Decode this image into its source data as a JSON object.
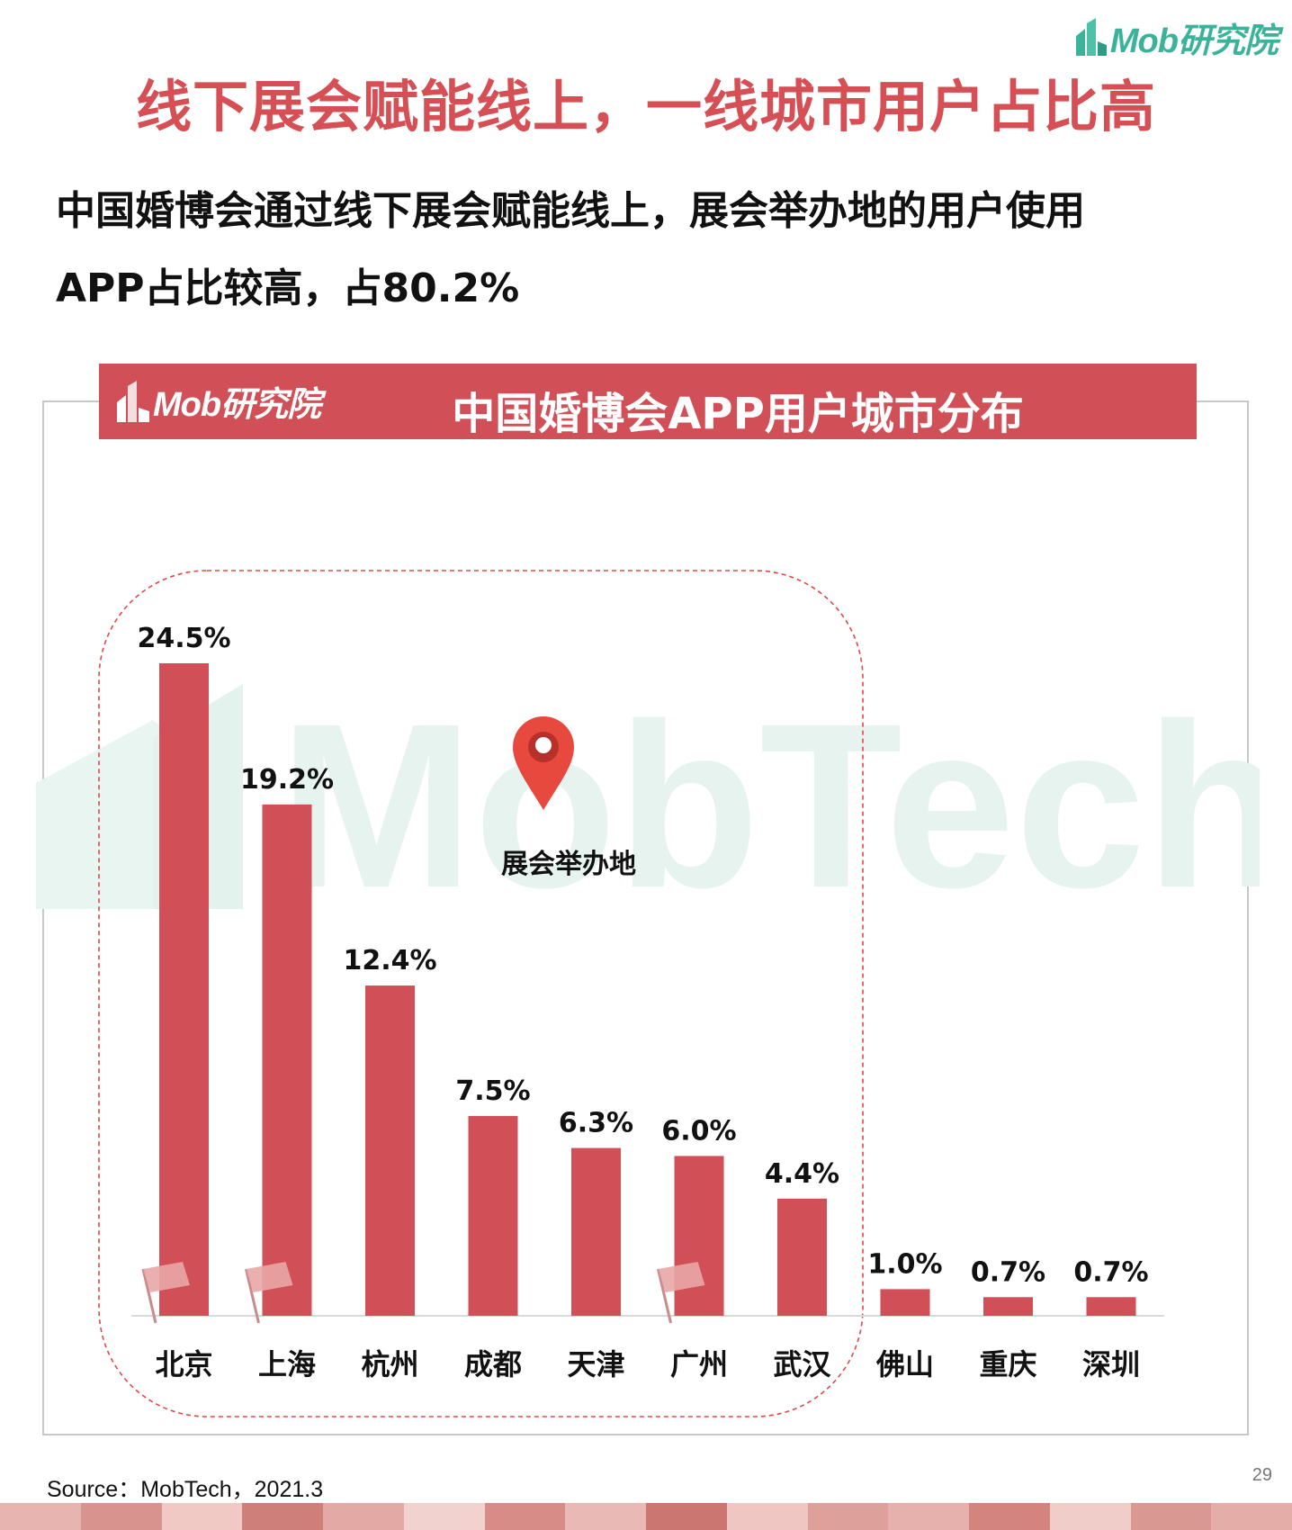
{
  "brand": {
    "name": "Mob研究院",
    "color": "#3bb39a"
  },
  "headline": "线下展会赋能线上，一线城市用户占比高",
  "summary": {
    "line1": "中国婚博会通过线下展会赋能线上，展会举办地的用户使用",
    "line2": "APP占比较高，占80.2%"
  },
  "chart_panel": {
    "logo": "Mob研究院",
    "title": "中国婚博会APP用户城市分布",
    "header_color": "#d14f56"
  },
  "watermark": "MobTech 袤博",
  "annotation": {
    "label": "展会举办地",
    "pin_icon": "location-pin-icon",
    "flag_icon": "flag-icon"
  },
  "chart_data": {
    "type": "bar",
    "title": "中国婚博会APP用户城市分布",
    "categories": [
      "北京",
      "上海",
      "杭州",
      "成都",
      "天津",
      "广州",
      "武汉",
      "佛山",
      "重庆",
      "深圳"
    ],
    "values": [
      24.5,
      19.2,
      12.4,
      7.5,
      6.3,
      6.0,
      4.4,
      1.0,
      0.7,
      0.7
    ],
    "data_labels": [
      "24.5%",
      "19.2%",
      "12.4%",
      "7.5%",
      "6.3%",
      "6.0%",
      "4.4%",
      "1.0%",
      "0.7%",
      "0.7%"
    ],
    "unit": "%",
    "bar_color": "#d14f56",
    "highlighted_group": [
      "北京",
      "上海",
      "杭州",
      "成都",
      "天津",
      "广州",
      "武汉"
    ],
    "flagged_categories": [
      "北京",
      "上海",
      "广州"
    ],
    "ylim": [
      0,
      24.5
    ],
    "grid": false,
    "legend": "none"
  },
  "source": "Source：MobTech，2021.3",
  "page_number": "29",
  "footer_colors": [
    "#e8b4b0",
    "#d9938e",
    "#f0c9c4",
    "#cf7f7a",
    "#e3a9a4",
    "#f2d2ce",
    "#d88c87",
    "#e9bab5",
    "#cc7671",
    "#efc6c2",
    "#dea09b",
    "#e6b1ac",
    "#d4847f",
    "#f1cdc9",
    "#da9893",
    "#e4ada8"
  ]
}
